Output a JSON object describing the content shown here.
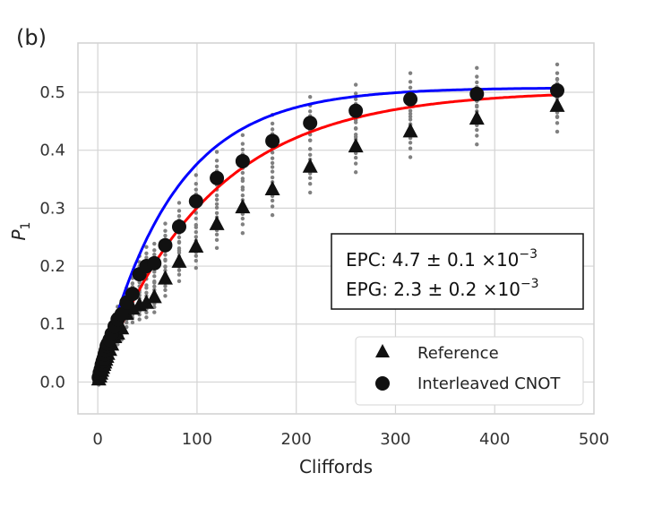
{
  "panel_label": "(b)",
  "chart_data": {
    "type": "scatter",
    "xlabel": "Cliffords",
    "ylabel": "P",
    "ylabel_sub": "1",
    "xlim": [
      -20,
      500
    ],
    "ylim": [
      -0.055,
      0.585
    ],
    "x_ticks": [
      0,
      100,
      200,
      300,
      400,
      500
    ],
    "x_tick_labels": [
      "0",
      "100",
      "200",
      "300",
      "400",
      "500"
    ],
    "y_ticks": [
      0.0,
      0.1,
      0.2,
      0.3,
      0.4,
      0.5
    ],
    "y_tick_labels": [
      "0.0",
      "0.1",
      "0.2",
      "0.3",
      "0.4",
      "0.5"
    ],
    "grid": true,
    "legend_position": "lower-right",
    "series": [
      {
        "name": "Reference",
        "marker": "triangle",
        "fit_color": "#ff0000",
        "fit": {
          "A": 0.503,
          "p": 0.99094
        },
        "x": [
          1,
          2,
          3,
          4,
          5,
          6,
          7,
          8,
          9,
          10,
          12,
          14,
          17,
          20,
          24,
          29,
          35,
          42,
          49,
          57,
          68,
          82,
          99,
          120,
          146,
          176,
          214,
          260,
          315,
          382,
          463
        ],
        "y": [
          0.005,
          0.01,
          0.015,
          0.02,
          0.025,
          0.03,
          0.034,
          0.039,
          0.044,
          0.049,
          0.056,
          0.065,
          0.078,
          0.084,
          0.093,
          0.118,
          0.127,
          0.133,
          0.137,
          0.147,
          0.179,
          0.208,
          0.234,
          0.273,
          0.302,
          0.333,
          0.372,
          0.407,
          0.433,
          0.455,
          0.477
        ]
      },
      {
        "name": "Interleaved CNOT",
        "marker": "circle",
        "fit_color": "#0000ff",
        "fit": {
          "A": 0.508,
          "p": 0.98659
        },
        "x": [
          1,
          2,
          3,
          4,
          5,
          6,
          7,
          8,
          9,
          10,
          12,
          14,
          17,
          20,
          24,
          29,
          35,
          42,
          49,
          57,
          68,
          82,
          99,
          120,
          146,
          176,
          214,
          260,
          315,
          382,
          463
        ],
        "y": [
          0.008,
          0.016,
          0.022,
          0.03,
          0.036,
          0.041,
          0.048,
          0.054,
          0.062,
          0.066,
          0.073,
          0.083,
          0.096,
          0.108,
          0.117,
          0.137,
          0.152,
          0.186,
          0.2,
          0.205,
          0.236,
          0.268,
          0.312,
          0.352,
          0.381,
          0.416,
          0.447,
          0.468,
          0.488,
          0.497,
          0.503
        ]
      }
    ],
    "raw_points_color": "#808080",
    "legend": [
      "Reference",
      "Interleaved CNOT"
    ]
  },
  "annotation": {
    "line1_prefix": "EPC: 4.7 ± 0.1 ×10",
    "line1_exp": "−3",
    "line2_prefix": "EPG: 2.3 ± 0.2 ×10",
    "line2_exp": "−3"
  }
}
